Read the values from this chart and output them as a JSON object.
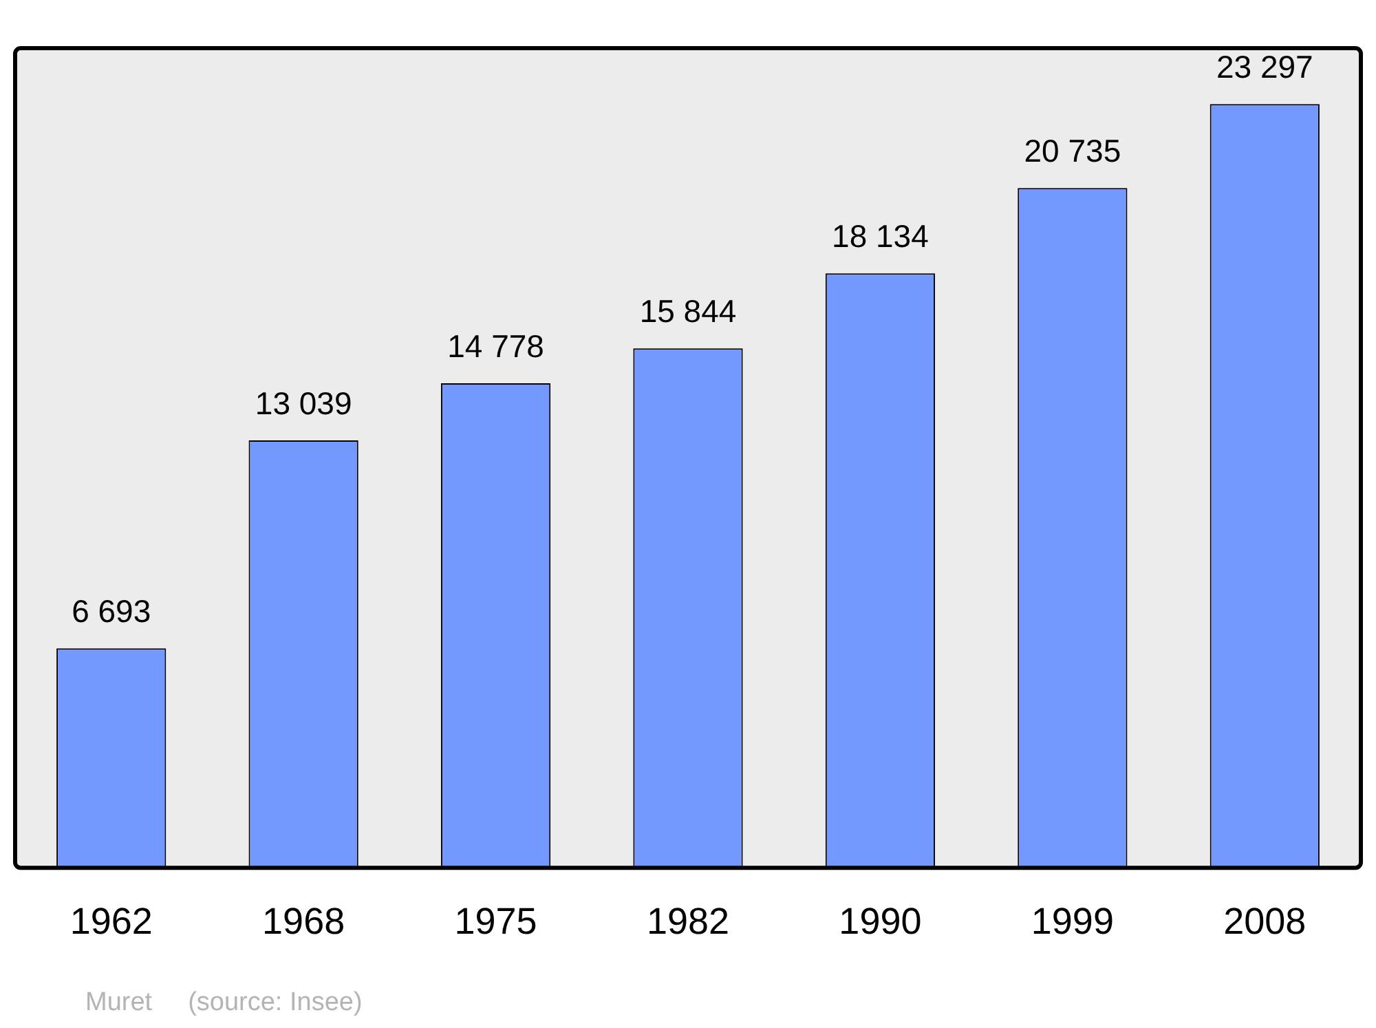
{
  "chart_data": {
    "type": "bar",
    "categories": [
      "1962",
      "1968",
      "1975",
      "1982",
      "1990",
      "1999",
      "2008"
    ],
    "values": [
      6693,
      13039,
      14778,
      15844,
      18134,
      20735,
      23297
    ],
    "color": "#7399ff",
    "data_labels": true,
    "legend": false,
    "annotations": [
      "Muret",
      "(source: Insee)"
    ]
  }
}
